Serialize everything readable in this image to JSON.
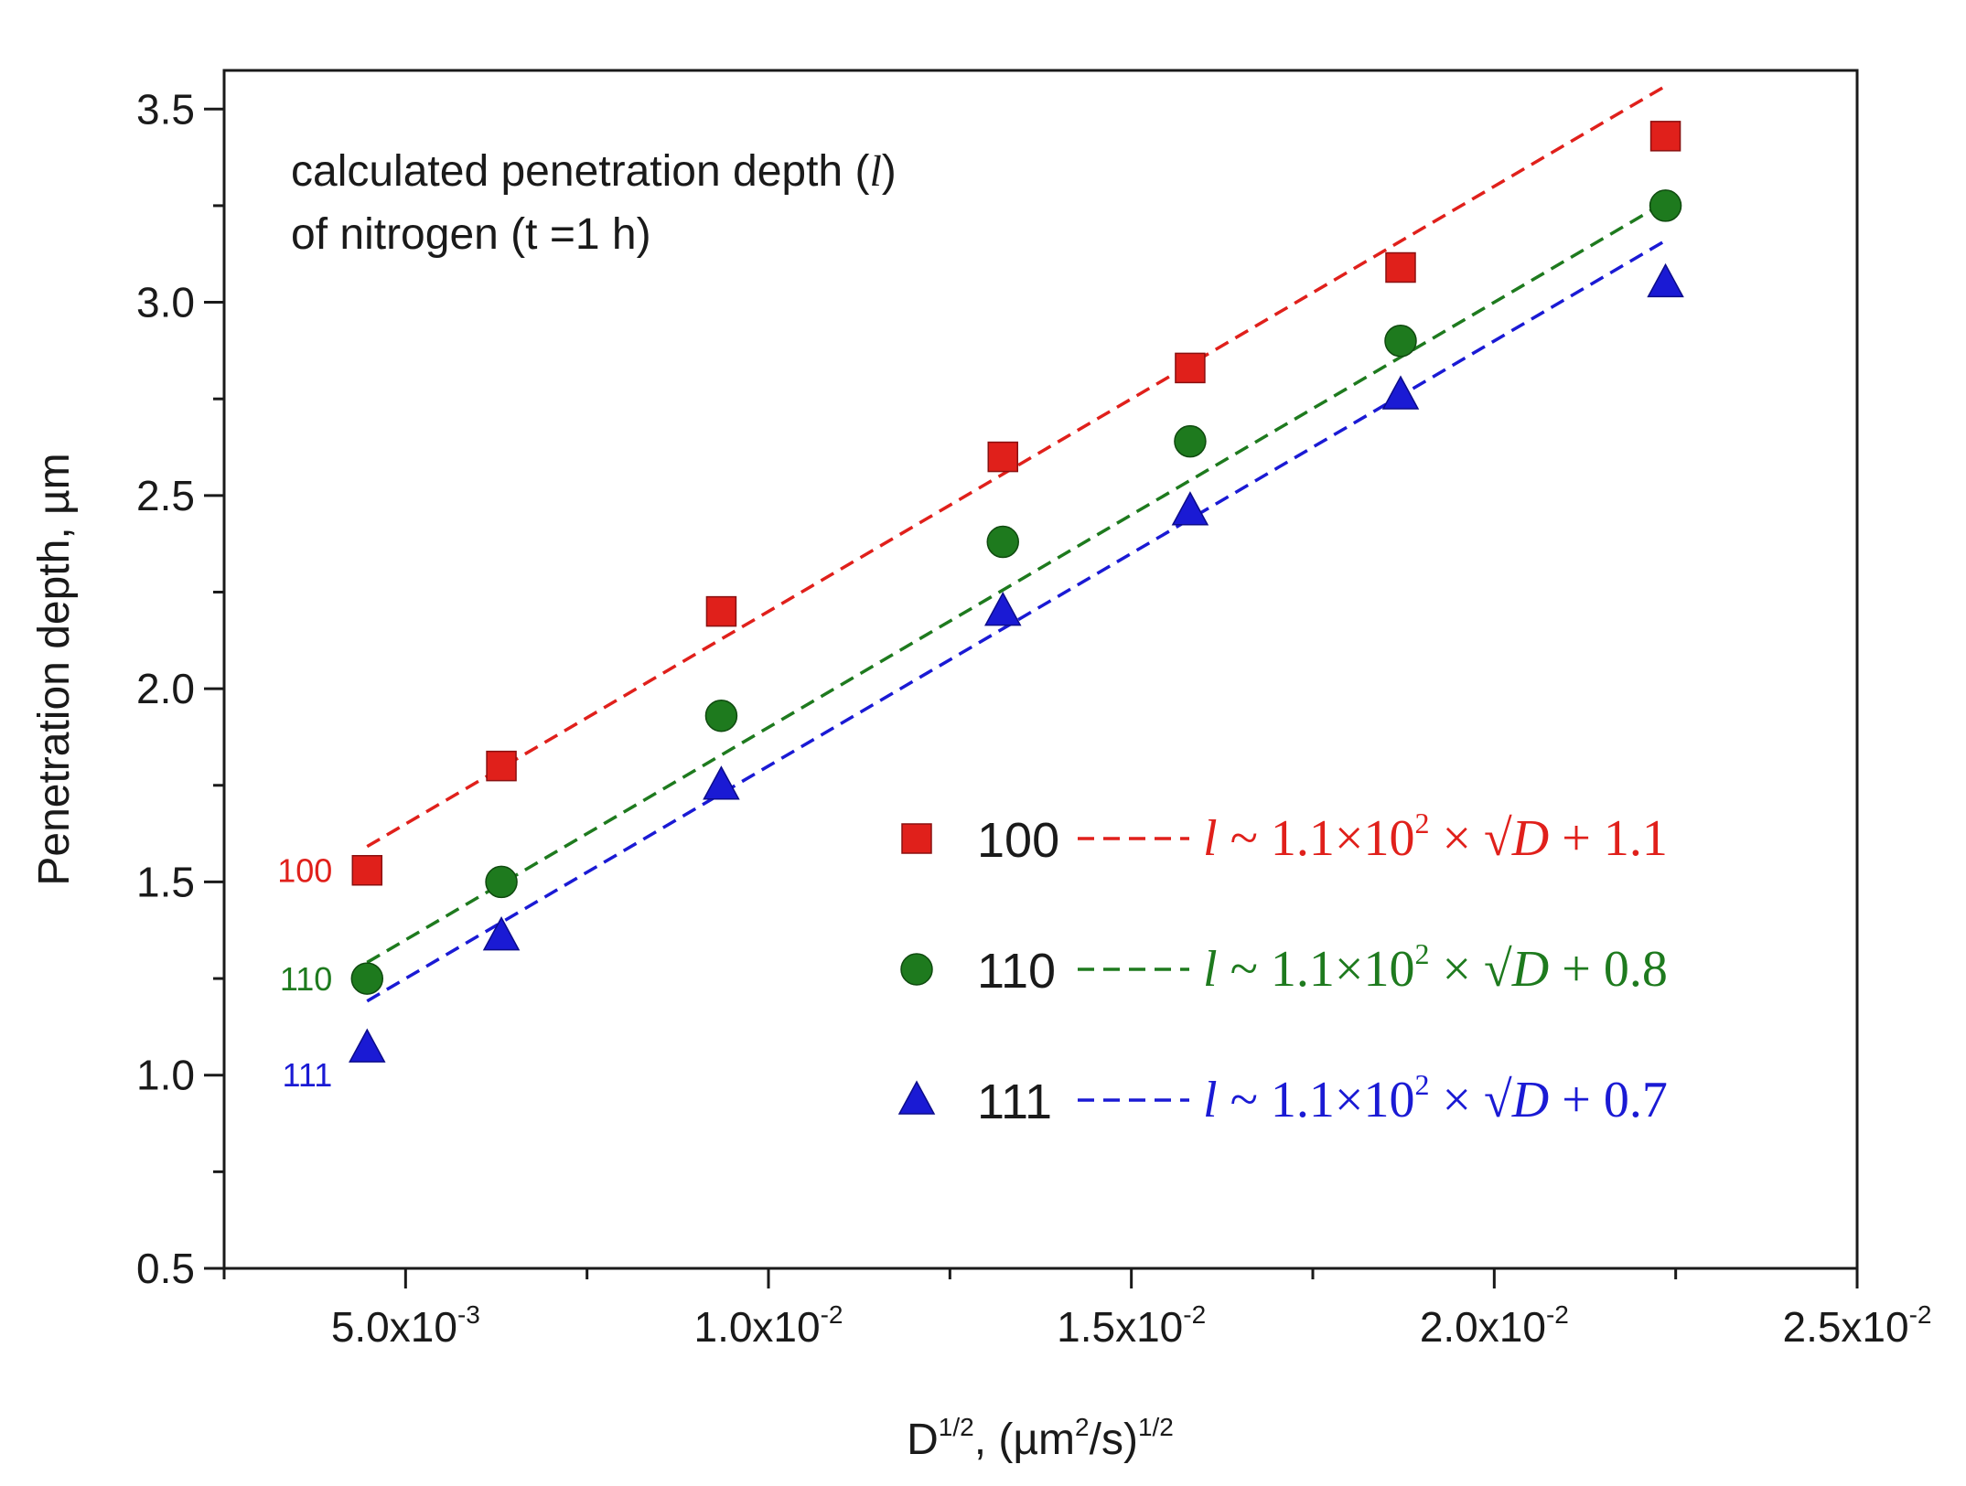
{
  "chart_data": {
    "type": "scatter",
    "title": "",
    "annotation": {
      "line1_prefix": "calculated penetration depth (",
      "line1_var": "l",
      "line1_suffix": ")",
      "line2": "of nitrogen (t =1 h)"
    },
    "xlabel": {
      "base": "D",
      "exp1": "1/2",
      "mid": ", (µm",
      "exp2": "2",
      "mid2": "/s)",
      "exp3": "1/2"
    },
    "ylabel": "Penetration depth, µm",
    "xlim": [
      0.0025,
      0.025
    ],
    "ylim": [
      0.5,
      3.6
    ],
    "xticks": [
      {
        "value": 0.005,
        "mant": "5.0x10",
        "exp": "-3"
      },
      {
        "value": 0.01,
        "mant": "1.0x10",
        "exp": "-2"
      },
      {
        "value": 0.015,
        "mant": "1.5x10",
        "exp": "-2"
      },
      {
        "value": 0.02,
        "mant": "2.0x10",
        "exp": "-2"
      },
      {
        "value": 0.025,
        "mant": "2.5x10",
        "exp": "-2"
      }
    ],
    "yticks": [
      {
        "value": 0.5,
        "label": "0.5"
      },
      {
        "value": 1.0,
        "label": "1.0"
      },
      {
        "value": 1.5,
        "label": "1.5"
      },
      {
        "value": 2.0,
        "label": "2.0"
      },
      {
        "value": 2.5,
        "label": "2.5"
      },
      {
        "value": 3.0,
        "label": "3.0"
      },
      {
        "value": 3.5,
        "label": "3.5"
      }
    ],
    "x": [
      0.00447,
      0.00632,
      0.00935,
      0.01323,
      0.01581,
      0.01871,
      0.02236
    ],
    "series": [
      {
        "name": "100",
        "color": "#e0201b",
        "marker": "square",
        "values": [
          1.53,
          1.8,
          2.2,
          2.6,
          2.83,
          3.09,
          3.43
        ],
        "fit": {
          "slope": 110,
          "intercept": 1.1
        },
        "eq": {
          "l": "l",
          "pre": " ~ 1.1×10",
          "exp": "2",
          "times": " × ",
          "root": "√",
          "D": "D",
          "post": " + 1.1"
        },
        "side_label": "100"
      },
      {
        "name": "110",
        "color": "#1e7a1e",
        "marker": "circle",
        "values": [
          1.25,
          1.5,
          1.93,
          2.38,
          2.64,
          2.9,
          3.25
        ],
        "fit": {
          "slope": 110,
          "intercept": 0.8
        },
        "eq": {
          "l": "l",
          "pre": " ~ 1.1×10",
          "exp": "2",
          "times": " × ",
          "root": "√",
          "D": "D",
          "post": " + 0.8"
        },
        "side_label": "110"
      },
      {
        "name": "111",
        "color": "#1a1ad4",
        "marker": "triangle",
        "values": [
          1.07,
          1.36,
          1.75,
          2.2,
          2.46,
          2.76,
          3.05
        ],
        "fit": {
          "slope": 110,
          "intercept": 0.7
        },
        "eq": {
          "l": "l",
          "pre": " ~ 1.1×10",
          "exp": "2",
          "times": " × ",
          "root": "√",
          "D": "D",
          "post": " + 0.7"
        },
        "side_label": "111"
      }
    ]
  }
}
